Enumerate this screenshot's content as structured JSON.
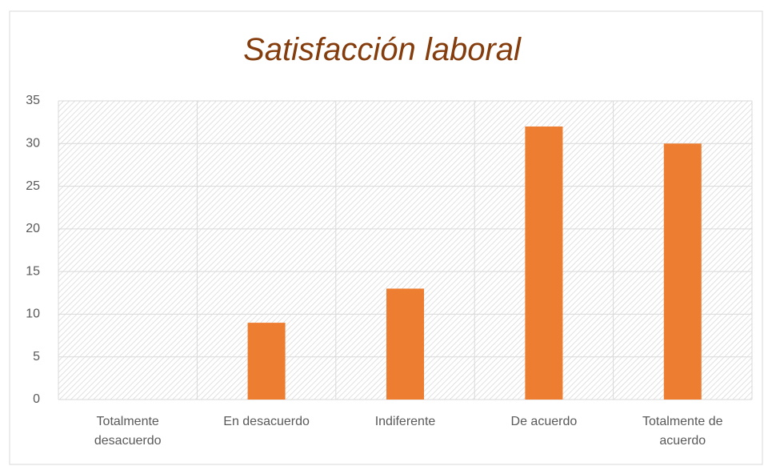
{
  "chart_data": {
    "type": "bar",
    "title": "Satisfacción laboral",
    "categories": [
      "Totalmente desacuerdo",
      "En desacuerdo",
      "Indiferente",
      "De acuerdo",
      "Totalmente de acuerdo"
    ],
    "values": [
      0,
      9,
      13,
      32,
      30
    ],
    "color": "#ed7d31",
    "ylim": [
      0,
      35
    ],
    "yticks": [
      0,
      5,
      10,
      15,
      20,
      25,
      30,
      35
    ],
    "grid": true
  }
}
